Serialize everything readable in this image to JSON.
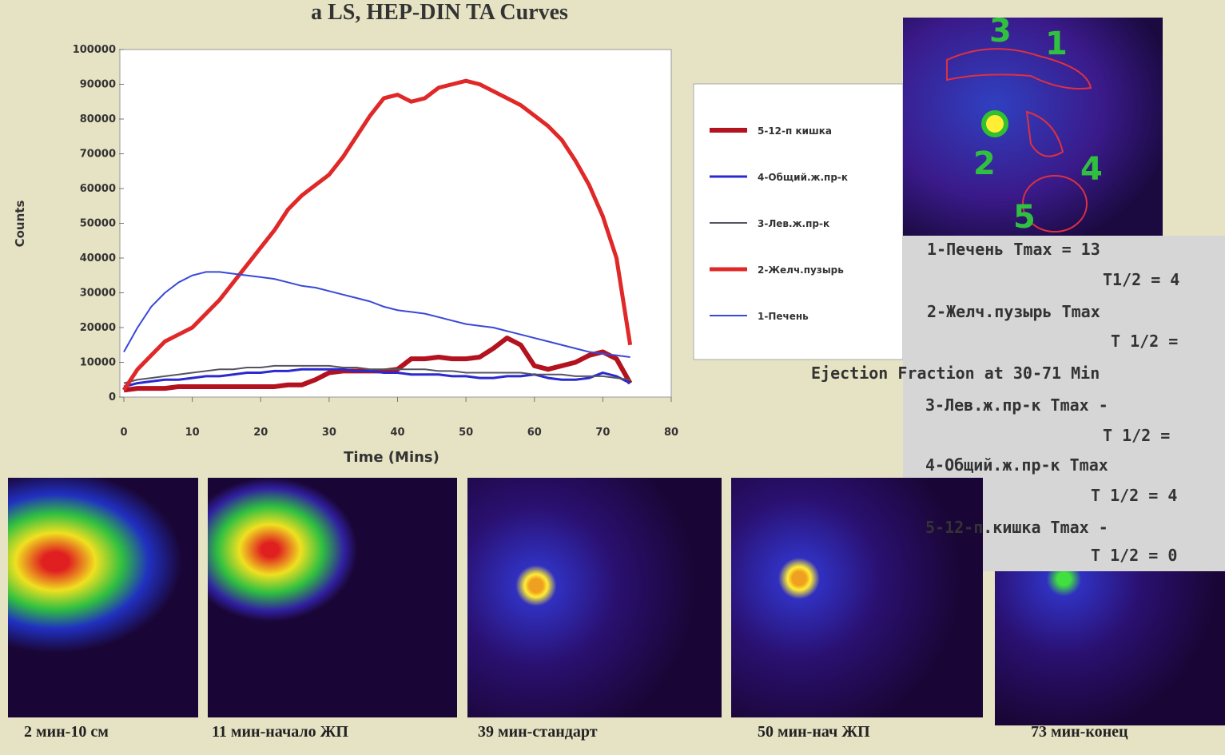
{
  "chart_data": {
    "type": "line",
    "title": "a LS, HEP-DIN  TA Curves",
    "xlabel": "Time (Mins)",
    "ylabel": "Counts",
    "xlim": [
      0,
      80
    ],
    "ylim": [
      0,
      100000
    ],
    "xticks": [
      0,
      10,
      20,
      30,
      40,
      50,
      60,
      70,
      80
    ],
    "yticks": [
      0,
      10000,
      20000,
      30000,
      40000,
      50000,
      60000,
      70000,
      80000,
      90000,
      100000
    ],
    "x": [
      0,
      2,
      4,
      6,
      8,
      10,
      12,
      14,
      16,
      18,
      20,
      22,
      24,
      26,
      28,
      30,
      32,
      34,
      36,
      38,
      40,
      42,
      44,
      46,
      48,
      50,
      52,
      54,
      56,
      58,
      60,
      62,
      64,
      66,
      68,
      70,
      72,
      74
    ],
    "series": [
      {
        "name": "5-12-п кишка",
        "color": "#b3121f",
        "linewidth": 6,
        "values": [
          2000,
          2500,
          2500,
          2500,
          3000,
          3000,
          3000,
          3000,
          3000,
          3000,
          3000,
          3000,
          3500,
          3500,
          5000,
          7000,
          7500,
          7500,
          7500,
          7500,
          8000,
          11000,
          11000,
          11500,
          11000,
          11000,
          11500,
          14000,
          17000,
          15000,
          9000,
          8000,
          9000,
          10000,
          12000,
          13000,
          11000,
          4000
        ]
      },
      {
        "name": "4-Общий.ж.пр-к",
        "color": "#2a2ad0",
        "linewidth": 3,
        "values": [
          3000,
          4000,
          4500,
          5000,
          5000,
          5500,
          6000,
          6000,
          6500,
          7000,
          7000,
          7500,
          7500,
          8000,
          8000,
          8000,
          8000,
          7500,
          7500,
          7000,
          7000,
          6500,
          6500,
          6500,
          6000,
          6000,
          5500,
          5500,
          6000,
          6000,
          6500,
          5500,
          5000,
          5000,
          5500,
          7000,
          6000,
          4000
        ]
      },
      {
        "name": "3-Лев.ж.пр-к",
        "color": "#555560",
        "linewidth": 2,
        "values": [
          4000,
          5000,
          5500,
          6000,
          6500,
          7000,
          7500,
          8000,
          8000,
          8500,
          8500,
          9000,
          9000,
          9000,
          9000,
          9000,
          8500,
          8500,
          8000,
          8000,
          8000,
          8000,
          8000,
          7500,
          7500,
          7000,
          7000,
          7000,
          7000,
          7000,
          6500,
          6500,
          6500,
          6000,
          6000,
          6000,
          5500,
          5000
        ]
      },
      {
        "name": "2-Желч.пузырь",
        "color": "#e02828",
        "linewidth": 5,
        "values": [
          2000,
          8000,
          12000,
          16000,
          18000,
          20000,
          24000,
          28000,
          33000,
          38000,
          43000,
          48000,
          54000,
          58000,
          61000,
          64000,
          69000,
          75000,
          81000,
          86000,
          87000,
          85000,
          86000,
          89000,
          90000,
          91000,
          90000,
          88000,
          86000,
          84000,
          81000,
          78000,
          74000,
          68000,
          61000,
          52000,
          40000,
          15000
        ]
      },
      {
        "name": "1-Печень",
        "color": "#3848d8",
        "linewidth": 2,
        "values": [
          13000,
          20000,
          26000,
          30000,
          33000,
          35000,
          36000,
          36000,
          35500,
          35000,
          34500,
          34000,
          33000,
          32000,
          31500,
          30500,
          29500,
          28500,
          27500,
          26000,
          25000,
          24500,
          24000,
          23000,
          22000,
          21000,
          20500,
          20000,
          19000,
          18000,
          17000,
          16000,
          15000,
          14000,
          13000,
          12500,
          12000,
          11500
        ]
      }
    ]
  },
  "roi_panel": {
    "labels": [
      "3",
      "1",
      "2",
      "4",
      "5"
    ]
  },
  "results": {
    "lines": [
      "1-Печень    Tmax = 13",
      "T1/2 = 4",
      "2-Желч.пузырь  Tmax",
      "T 1/2 =",
      "Ejection Fraction at 30-71 Min",
      "3-Лев.ж.пр-к Tmax -",
      "T 1/2 =",
      "4-Общий.ж.пр-к Tmax",
      "T 1/2 = 4",
      "5-12-п.кишка Tmax -",
      "T 1/2 = 0"
    ]
  },
  "images": {
    "captions": [
      "2 мин-10 см",
      "11 мин-начало ЖП",
      "39 мин-стандарт",
      "50 мин-нач ЖП",
      "73 мин-конец"
    ]
  }
}
